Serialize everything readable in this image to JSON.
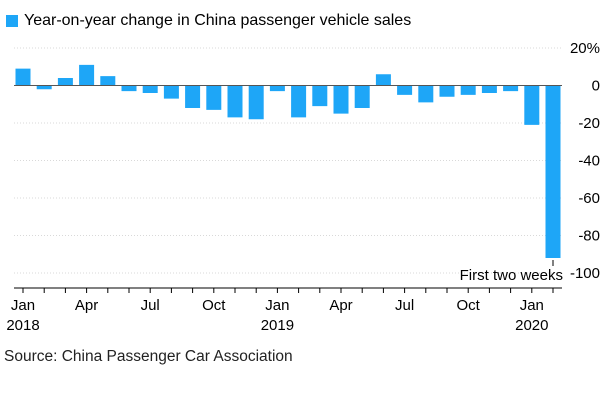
{
  "chart_data": {
    "type": "bar",
    "title": "Year-on-year change in China passenger vehicle sales",
    "legend": [
      "Year-on-year change in China passenger vehicle sales"
    ],
    "unit": "%",
    "categories": [
      "2018-01",
      "2018-02",
      "2018-03",
      "2018-04",
      "2018-05",
      "2018-06",
      "2018-07",
      "2018-08",
      "2018-09",
      "2018-10",
      "2018-11",
      "2018-12",
      "2019-01",
      "2019-02",
      "2019-03",
      "2019-04",
      "2019-05",
      "2019-06",
      "2019-07",
      "2019-08",
      "2019-09",
      "2019-10",
      "2019-11",
      "2019-12",
      "2020-01",
      "2020-first-two-weeks"
    ],
    "values": [
      9,
      -2,
      4,
      11,
      5,
      -3,
      -4,
      -7,
      -12,
      -13,
      -17,
      -18,
      -3,
      -17,
      -11,
      -15,
      -12,
      6,
      -5,
      -9,
      -6,
      -5,
      -4,
      -3,
      -21,
      -92
    ],
    "ylim": [
      -100,
      20
    ],
    "y_ticks": [
      20,
      0,
      -20,
      -40,
      -60,
      -80,
      -100
    ],
    "y_tick_labels": [
      "20%",
      "0",
      "-20",
      "-40",
      "-60",
      "-80",
      "-100"
    ],
    "x_tick_labels": [
      {
        "index": 0,
        "month": "Jan",
        "year": "2018"
      },
      {
        "index": 3,
        "month": "Apr",
        "year": ""
      },
      {
        "index": 6,
        "month": "Jul",
        "year": ""
      },
      {
        "index": 9,
        "month": "Oct",
        "year": ""
      },
      {
        "index": 12,
        "month": "Jan",
        "year": "2019"
      },
      {
        "index": 15,
        "month": "Apr",
        "year": ""
      },
      {
        "index": 18,
        "month": "Jul",
        "year": ""
      },
      {
        "index": 21,
        "month": "Oct",
        "year": ""
      },
      {
        "index": 24,
        "month": "Jan",
        "year": "2020"
      }
    ],
    "annotation": {
      "index": 25,
      "text": "First two weeks"
    },
    "bar_color": "#1ea6f7",
    "grid": true
  },
  "source": "Source: China Passenger Car Association"
}
